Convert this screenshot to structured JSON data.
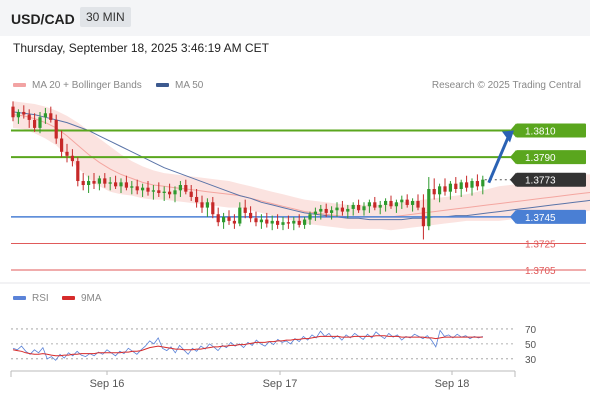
{
  "header": {
    "symbol": "USD/CAD",
    "timeframe": "30 MIN"
  },
  "datetime": "Thursday, September 18, 2025 3:46:19 AM CET",
  "legend": {
    "bb": "MA 20 + Bollinger Bands",
    "ma50": "MA 50",
    "credit": "Research © 2025 Trading Central"
  },
  "rsi_legend": {
    "rsi": "RSI",
    "ma": "9MA"
  },
  "colors": {
    "green": "#5aa61e",
    "blue": "#4a7fd4",
    "red": "#e05a5a",
    "arrow": "#2a62b4",
    "candle_up": "#2e9a2e",
    "candle_down": "#c62828",
    "band": "#fbe3e0",
    "ma50": "#5a74a8",
    "rsi_line": "#5b83d8",
    "rsi_ma": "#d62b2b",
    "current": "#333333"
  },
  "chart_data": {
    "type": "candlestick",
    "price_axis": {
      "range": [
        1.3696,
        1.3836
      ]
    },
    "levels": [
      {
        "value": "1.3810",
        "type": "resistance"
      },
      {
        "value": "1.3790",
        "type": "resistance"
      },
      {
        "value": "1.3773",
        "type": "current"
      },
      {
        "value": "1.3745",
        "type": "pivot"
      },
      {
        "value": "1.3725",
        "type": "support"
      },
      {
        "value": "1.3705",
        "type": "support"
      }
    ],
    "x_labels": [
      "Sep 16",
      "Sep 17",
      "Sep 18"
    ],
    "projection": {
      "from": 1.3773,
      "to": 1.381,
      "direction": "up"
    },
    "candles": [
      [
        1.3828,
        1.3832,
        1.3817,
        1.382
      ],
      [
        1.382,
        1.3826,
        1.3815,
        1.3824
      ],
      [
        1.3824,
        1.3829,
        1.3819,
        1.3822
      ],
      [
        1.3822,
        1.3826,
        1.3812,
        1.3818
      ],
      [
        1.3818,
        1.3823,
        1.3809,
        1.3812
      ],
      [
        1.3812,
        1.3824,
        1.3808,
        1.382
      ],
      [
        1.382,
        1.3827,
        1.3815,
        1.3823
      ],
      [
        1.3823,
        1.3828,
        1.3816,
        1.3818
      ],
      [
        1.3818,
        1.3822,
        1.38,
        1.3804
      ],
      [
        1.3804,
        1.381,
        1.379,
        1.3794
      ],
      [
        1.3794,
        1.38,
        1.3786,
        1.3791
      ],
      [
        1.3791,
        1.3796,
        1.3783,
        1.3787
      ],
      [
        1.3787,
        1.379,
        1.3768,
        1.3772
      ],
      [
        1.3772,
        1.3778,
        1.3765,
        1.3769
      ],
      [
        1.3769,
        1.3776,
        1.3763,
        1.3772
      ],
      [
        1.3772,
        1.3778,
        1.3766,
        1.377
      ],
      [
        1.377,
        1.3776,
        1.3765,
        1.3774
      ],
      [
        1.3774,
        1.3778,
        1.3767,
        1.377
      ],
      [
        1.377,
        1.3775,
        1.3765,
        1.3771
      ],
      [
        1.3771,
        1.3776,
        1.3766,
        1.3768
      ],
      [
        1.3768,
        1.3774,
        1.3763,
        1.3771
      ],
      [
        1.3771,
        1.3776,
        1.3765,
        1.3767
      ],
      [
        1.3767,
        1.3772,
        1.3762,
        1.3768
      ],
      [
        1.3768,
        1.3773,
        1.3762,
        1.3765
      ],
      [
        1.3765,
        1.377,
        1.376,
        1.3767
      ],
      [
        1.3767,
        1.3772,
        1.3761,
        1.3764
      ],
      [
        1.3764,
        1.3769,
        1.3758,
        1.3765
      ],
      [
        1.3765,
        1.3771,
        1.376,
        1.3763
      ],
      [
        1.3763,
        1.3768,
        1.3757,
        1.3764
      ],
      [
        1.3764,
        1.377,
        1.3759,
        1.3762
      ],
      [
        1.3762,
        1.3768,
        1.3756,
        1.3765
      ],
      [
        1.3765,
        1.3772,
        1.376,
        1.3769
      ],
      [
        1.3769,
        1.3773,
        1.3762,
        1.3764
      ],
      [
        1.3764,
        1.3769,
        1.3757,
        1.376
      ],
      [
        1.376,
        1.3766,
        1.3752,
        1.3756
      ],
      [
        1.3756,
        1.3761,
        1.3748,
        1.3752
      ],
      [
        1.3752,
        1.3759,
        1.3745,
        1.3756
      ],
      [
        1.3756,
        1.376,
        1.3744,
        1.3747
      ],
      [
        1.3747,
        1.3752,
        1.3738,
        1.3741
      ],
      [
        1.3741,
        1.3748,
        1.3736,
        1.3745
      ],
      [
        1.3745,
        1.375,
        1.3739,
        1.3742
      ],
      [
        1.3742,
        1.3747,
        1.3736,
        1.374
      ],
      [
        1.374,
        1.3756,
        1.3738,
        1.3752
      ],
      [
        1.3752,
        1.3758,
        1.3744,
        1.3748
      ],
      [
        1.3748,
        1.3753,
        1.3741,
        1.3744
      ],
      [
        1.3744,
        1.3749,
        1.3738,
        1.3741
      ],
      [
        1.3741,
        1.3747,
        1.3736,
        1.3743
      ],
      [
        1.3743,
        1.3748,
        1.3737,
        1.374
      ],
      [
        1.374,
        1.3746,
        1.3735,
        1.3742
      ],
      [
        1.3742,
        1.3747,
        1.3736,
        1.3739
      ],
      [
        1.3739,
        1.3745,
        1.3735,
        1.3741
      ],
      [
        1.3741,
        1.3746,
        1.3736,
        1.374
      ],
      [
        1.374,
        1.3745,
        1.3735,
        1.3742
      ],
      [
        1.3742,
        1.3747,
        1.3737,
        1.3739
      ],
      [
        1.3739,
        1.3745,
        1.3736,
        1.3743
      ],
      [
        1.3743,
        1.3749,
        1.3739,
        1.3747
      ],
      [
        1.3747,
        1.3752,
        1.3742,
        1.3749
      ],
      [
        1.3749,
        1.3754,
        1.3743,
        1.3751
      ],
      [
        1.3751,
        1.3755,
        1.3745,
        1.3748
      ],
      [
        1.3748,
        1.3753,
        1.3743,
        1.375
      ],
      [
        1.375,
        1.3756,
        1.3745,
        1.3752
      ],
      [
        1.3752,
        1.3757,
        1.3746,
        1.3749
      ],
      [
        1.3749,
        1.3754,
        1.3744,
        1.3751
      ],
      [
        1.3751,
        1.3756,
        1.3746,
        1.3754
      ],
      [
        1.3754,
        1.3758,
        1.3748,
        1.375
      ],
      [
        1.375,
        1.3756,
        1.3746,
        1.3753
      ],
      [
        1.3753,
        1.3758,
        1.3748,
        1.3756
      ],
      [
        1.3756,
        1.376,
        1.375,
        1.3752
      ],
      [
        1.3752,
        1.3757,
        1.3747,
        1.3754
      ],
      [
        1.3754,
        1.3759,
        1.3749,
        1.3757
      ],
      [
        1.3757,
        1.3761,
        1.3751,
        1.3753
      ],
      [
        1.3753,
        1.3758,
        1.3748,
        1.3756
      ],
      [
        1.3756,
        1.3761,
        1.3751,
        1.3758
      ],
      [
        1.3758,
        1.3762,
        1.3752,
        1.3754
      ],
      [
        1.3754,
        1.3759,
        1.3749,
        1.3757
      ],
      [
        1.3757,
        1.3762,
        1.375,
        1.3752
      ],
      [
        1.3752,
        1.3762,
        1.3728,
        1.3738
      ],
      [
        1.3738,
        1.3775,
        1.3735,
        1.3766
      ],
      [
        1.3766,
        1.3774,
        1.3758,
        1.3762
      ],
      [
        1.3762,
        1.377,
        1.3756,
        1.3768
      ],
      [
        1.3768,
        1.3774,
        1.3761,
        1.3764
      ],
      [
        1.3764,
        1.3772,
        1.3758,
        1.377
      ],
      [
        1.377,
        1.3775,
        1.3763,
        1.3766
      ],
      [
        1.3766,
        1.3773,
        1.376,
        1.3771
      ],
      [
        1.3771,
        1.3776,
        1.3764,
        1.3767
      ],
      [
        1.3767,
        1.3774,
        1.3761,
        1.3772
      ],
      [
        1.3772,
        1.3777,
        1.3765,
        1.3768
      ],
      [
        1.3768,
        1.3776,
        1.3762,
        1.3773
      ]
    ],
    "ma20": [
      1.3822,
      1.3821,
      1.3819,
      1.3816,
      1.3812,
      1.3806,
      1.3799,
      1.3792,
      1.3786,
      1.3781,
      1.3777,
      1.3774,
      1.3771,
      1.3769,
      1.3768,
      1.3767,
      1.3766,
      1.3765,
      1.3764,
      1.3763,
      1.3762,
      1.3761,
      1.3759,
      1.3757,
      1.3755,
      1.3753,
      1.3751,
      1.3749,
      1.3748,
      1.3747,
      1.3746,
      1.3745,
      1.3745,
      1.3745,
      1.3745,
      1.3745,
      1.3746,
      1.3747,
      1.3748,
      1.3749,
      1.375,
      1.3751,
      1.3752,
      1.3753,
      1.3754,
      1.3755,
      1.3756,
      1.3757,
      1.3758,
      1.3759,
      1.376,
      1.3761,
      1.3762,
      1.3763,
      1.3764,
      1.3765,
      1.3766,
      1.3767,
      1.3768
    ],
    "bb_upper": [
      1.3832,
      1.3831,
      1.383,
      1.3828,
      1.3825,
      1.3821,
      1.3816,
      1.381,
      1.3804,
      1.3798,
      1.3792,
      1.3787,
      1.3783,
      1.378,
      1.3778,
      1.3777,
      1.3776,
      1.3775,
      1.3774,
      1.3773,
      1.3772,
      1.377,
      1.3768,
      1.3766,
      1.3764,
      1.3762,
      1.376,
      1.3758,
      1.3757,
      1.3756,
      1.3755,
      1.3754,
      1.3754,
      1.3754,
      1.3754,
      1.3755,
      1.3756,
      1.3757,
      1.3758,
      1.3759,
      1.376,
      1.3761,
      1.3762,
      1.3764,
      1.3766,
      1.3768,
      1.3769,
      1.377,
      1.3772,
      1.3773,
      1.3774,
      1.3775,
      1.3776,
      1.3777,
      1.3777,
      1.3778,
      1.3778,
      1.3778,
      1.3778
    ],
    "bb_lower": [
      1.3812,
      1.3811,
      1.3808,
      1.3804,
      1.3799,
      1.3791,
      1.3782,
      1.3774,
      1.3768,
      1.3764,
      1.3762,
      1.3761,
      1.3759,
      1.3758,
      1.3758,
      1.3757,
      1.3756,
      1.3755,
      1.3754,
      1.3753,
      1.3752,
      1.3752,
      1.375,
      1.3748,
      1.3746,
      1.3744,
      1.3742,
      1.374,
      1.3739,
      1.3738,
      1.3737,
      1.3736,
      1.3736,
      1.3736,
      1.3736,
      1.3735,
      1.3736,
      1.3737,
      1.3738,
      1.3739,
      1.374,
      1.3741,
      1.3742,
      1.3742,
      1.3742,
      1.3742,
      1.3743,
      1.3744,
      1.3744,
      1.3745,
      1.3746,
      1.3747,
      1.3748,
      1.3749,
      1.3751,
      1.3752,
      1.3754,
      1.3756,
      1.3758
    ],
    "ma50": [
      1.3824,
      1.3823,
      1.3822,
      1.382,
      1.3818,
      1.3816,
      1.3813,
      1.381,
      1.3806,
      1.3802,
      1.3798,
      1.3794,
      1.379,
      1.3786,
      1.3782,
      1.3779,
      1.3776,
      1.3773,
      1.377,
      1.3767,
      1.3764,
      1.3761,
      1.3759,
      1.3756,
      1.3754,
      1.3752,
      1.375,
      1.3748,
      1.3747,
      1.3746,
      1.3745,
      1.3744,
      1.3744,
      1.3743,
      1.3743,
      1.3743,
      1.3743,
      1.3744,
      1.3744,
      1.3745,
      1.3745,
      1.3746,
      1.3746,
      1.3747,
      1.3748,
      1.3749,
      1.375,
      1.3751,
      1.3752,
      1.3753,
      1.3754,
      1.3755,
      1.3756,
      1.3757,
      1.3758,
      1.3759,
      1.376,
      1.3762,
      1.3764
    ],
    "rsi": {
      "levels": [
        "70",
        "50",
        "30"
      ],
      "range": [
        15,
        90
      ],
      "rsi": [
        44,
        42,
        47,
        40,
        36,
        42,
        38,
        45,
        30,
        33,
        28,
        36,
        31,
        38,
        34,
        40,
        35,
        33,
        37,
        34,
        39,
        36,
        42,
        38,
        34,
        40,
        37,
        44,
        40,
        36,
        42,
        47,
        54,
        50,
        58,
        44,
        41,
        46,
        38,
        48,
        42,
        36,
        44,
        40,
        47,
        43,
        50,
        46,
        41,
        48,
        45,
        52,
        47,
        50,
        45,
        52,
        48,
        55,
        50,
        47,
        53,
        49,
        56,
        52,
        54,
        50,
        57,
        53,
        60,
        55,
        62,
        58,
        67,
        60,
        64,
        57,
        61,
        55,
        62,
        58,
        64,
        60,
        56,
        63,
        58,
        66,
        61,
        57,
        64,
        59,
        62,
        55,
        60,
        58,
        63,
        60,
        57,
        61,
        55,
        46,
        68,
        60,
        62,
        58,
        63,
        59,
        61,
        57,
        60,
        58,
        60
      ],
      "ma": [
        42,
        41,
        40,
        38,
        37,
        36,
        36,
        37,
        36,
        35,
        34,
        34,
        35,
        35,
        36,
        36,
        37,
        37,
        37,
        37,
        38,
        38,
        38,
        38,
        38,
        38,
        39,
        39,
        40,
        40,
        41,
        43,
        45,
        46,
        47,
        46,
        45,
        44,
        43,
        43,
        42,
        42,
        42,
        43,
        43,
        44,
        45,
        46,
        46,
        47,
        47,
        48,
        48,
        49,
        49,
        50,
        51,
        52,
        52,
        52,
        53,
        53,
        54,
        54,
        55,
        55,
        56,
        56,
        57,
        57,
        58,
        59,
        60,
        60,
        60,
        60,
        60,
        59,
        59,
        59,
        60,
        60,
        60,
        60,
        60,
        61,
        61,
        61,
        60,
        60,
        60,
        59,
        59,
        59,
        59,
        59,
        59,
        58,
        58,
        57,
        58,
        59,
        59,
        59,
        59,
        59,
        59,
        59,
        59,
        59,
        59
      ]
    }
  }
}
